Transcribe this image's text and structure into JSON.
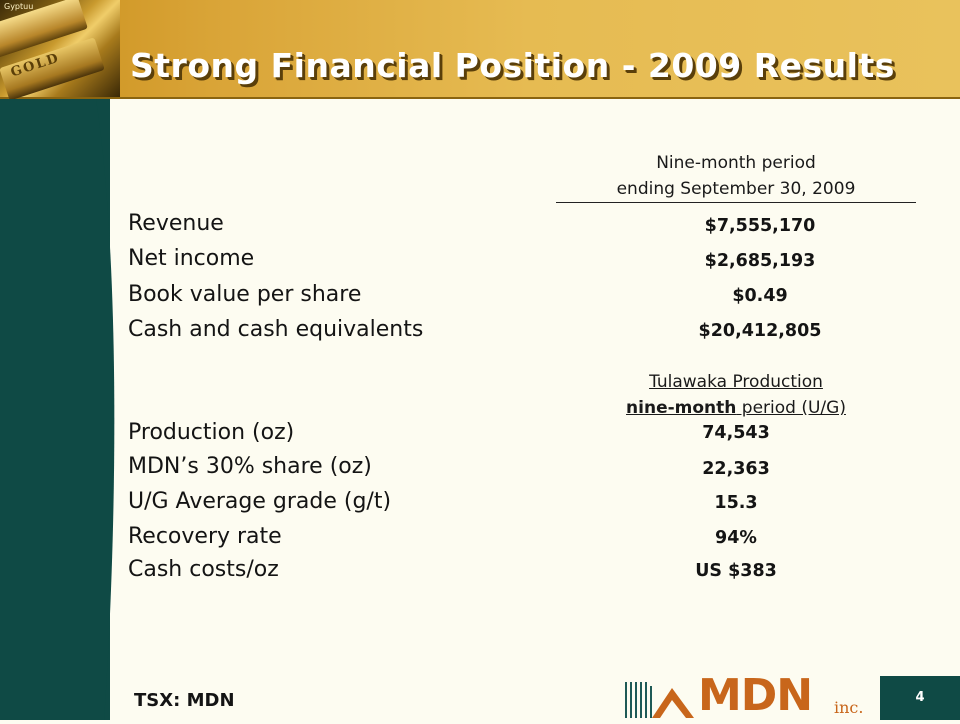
{
  "header": {
    "title": "Strong Financial Position - 2009 Results",
    "photo_engraving": "GOLD",
    "photo_small_text": "Gyptuu"
  },
  "financials": {
    "column_header_line1": "Nine-month period",
    "column_header_line2": "ending September 30, 2009",
    "rows": [
      {
        "label": "Revenue",
        "value": "$7,555,170"
      },
      {
        "label": "Net income",
        "value": "$2,685,193"
      },
      {
        "label": "Book value per share",
        "value": "$0.49"
      },
      {
        "label": "Cash and cash equivalents",
        "value": "$20,412,805"
      }
    ]
  },
  "production": {
    "column_header_line1": "Tulawaka Production",
    "column_header_line2_bold": "nine-month",
    "column_header_line2_rest": " period (U/G)",
    "rows": [
      {
        "label": "Production (oz)",
        "value": "74,543"
      },
      {
        "label": "MDN’s 30% share (oz)",
        "value": "22,363"
      },
      {
        "label": "U/G Average grade (g/t)",
        "value": "15.3"
      },
      {
        "label": "Recovery rate",
        "value": "94%"
      },
      {
        "label": "Cash costs/oz",
        "value": "US $383"
      }
    ]
  },
  "footer": {
    "ticker": "TSX: MDN",
    "page_number": "4",
    "logo_text": "MDN",
    "logo_suffix": "inc."
  },
  "colors": {
    "teal": "#0f4a45",
    "gold": "#d9a437",
    "logo_orange": "#c8661b",
    "background": "#fdfcf1"
  }
}
